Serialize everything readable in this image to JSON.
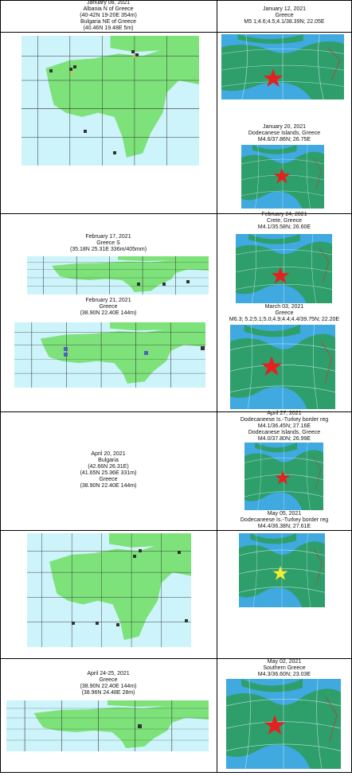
{
  "table": {
    "rows": [
      [
        [
          [
            "January 08, 2021",
            "Albania N of Greece",
            "(40-42N 19-20E 354m)",
            "Bulgaria NE of Greece",
            "(40.46N 19.48E 5m)"
          ]
        ],
        [
          [
            "January 12, 2021",
            "Greece",
            "M5 1;4.6;4.5;4.1/38.39N; 22.05E"
          ]
        ]
      ],
      [
        [],
        [
          [
            "January 20, 2021",
            "Dodecanese Islands, Greece",
            "M4.6/37.86N; 26.75E"
          ]
        ]
      ],
      [
        [
          [
            "February 17, 2021",
            "Greece S",
            "(35.18N 25.31E 336m/405mm)"
          ],
          [
            "February 21, 2021",
            "Greece",
            "(38.90N 22.40E 144m)"
          ]
        ],
        [
          [
            "February 24, 2021",
            "Crete, Greece",
            "M4.1/35.58N; 26.60E"
          ],
          [
            "March 03, 2021",
            "Greece",
            "M6.3; 5.2;5.1;5.0;4.9;4.4;4.4/39.75N; 22.20E"
          ]
        ]
      ],
      [
        [
          [
            "April 20, 2021",
            "Bulgaria",
            "(42.66N 26.31E)",
            "(41.65N 25.36E 331m)",
            "Greece",
            "(38.90N 22.40E 144m)"
          ]
        ],
        [
          [
            "April 27, 2021",
            "Dodecaneese Is.-Turkey border reg",
            "M4.1/36.45N; 27.16E",
            "Dodecanese Islands, Greece",
            "M4.0/37.80N; 26.99E"
          ],
          [
            "May 05, 2021",
            "Dodecaneese Is.-Turkey border reg",
            "M4.4/36.38N; 27.61E"
          ]
        ]
      ],
      [
        [],
        []
      ],
      [
        [
          [
            "April 24-25, 2021",
            "Greece",
            "(38.90N 22.40E 144m)",
            "(38.96N 24.48E 28m)"
          ]
        ],
        [
          [
            "May 02, 2021",
            "Southern Greece",
            "M4.3/36.60N; 23.03E"
          ]
        ]
      ]
    ]
  }
}
